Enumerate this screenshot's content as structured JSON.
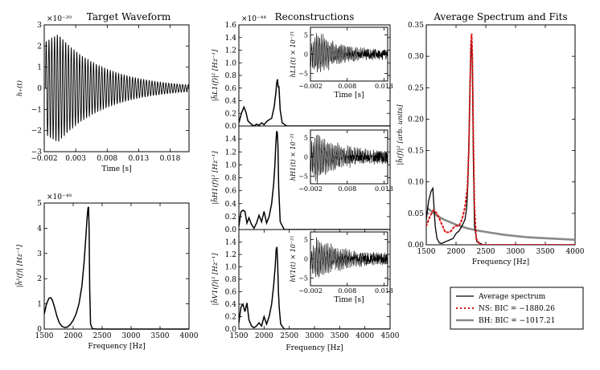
{
  "chart_data": [
    {
      "id": "target_waveform",
      "type": "line",
      "title": "Target Waveform",
      "xlabel": "Time [s]",
      "ylabel": "h₊(t)",
      "exponent": "×10⁻²⁰",
      "xlim": [
        -0.002,
        0.021
      ],
      "ylim": [
        -3,
        3
      ],
      "xticks": [
        -0.002,
        0.003,
        0.008,
        0.013,
        0.018
      ],
      "xtick_labels": [
        "−0.002",
        "0.003",
        "0.008",
        "0.013",
        "0.018"
      ],
      "yticks": [
        -3,
        -2,
        -1,
        0,
        1,
        2,
        3
      ],
      "ytick_labels": [
        "−3",
        "−2",
        "−1",
        "0",
        "1",
        "2",
        "3"
      ],
      "signal": {
        "t_start": -0.0018,
        "t_end": 0.021,
        "t_peak": 0.0002,
        "peak_amplitude": 2.55,
        "initial_amplitude": 2.2,
        "decay_time": 0.0075,
        "frequency_hz": 2260
      }
    },
    {
      "id": "power_spectrum",
      "type": "line",
      "title": "",
      "xlabel": "Frequency [Hz]",
      "ylabel": "|h̃²(f)| [Hz⁻¹]",
      "exponent": "×10⁻⁴⁸",
      "xlim": [
        1500,
        4000
      ],
      "ylim": [
        0,
        5
      ],
      "xticks": [
        1500,
        2000,
        2500,
        3000,
        3500,
        4000
      ],
      "xtick_labels": [
        "1500",
        "2000",
        "2500",
        "3000",
        "3500",
        "4000"
      ],
      "yticks": [
        0,
        1,
        2,
        3,
        4,
        5
      ],
      "ytick_labels": [
        "0",
        "1",
        "2",
        "3",
        "4",
        "5"
      ],
      "x": [
        1500,
        1540,
        1580,
        1610,
        1640,
        1680,
        1720,
        1760,
        1800,
        1850,
        1900,
        1950,
        2000,
        2050,
        2100,
        2150,
        2190,
        2220,
        2240,
        2255,
        2265,
        2275,
        2285,
        2300,
        2330,
        2400,
        2600,
        3000,
        3500,
        4000
      ],
      "values": [
        0.6,
        1.0,
        1.22,
        1.25,
        1.15,
        0.85,
        0.5,
        0.25,
        0.12,
        0.06,
        0.08,
        0.18,
        0.35,
        0.6,
        1.0,
        1.7,
        2.7,
        3.7,
        4.4,
        4.8,
        4.85,
        4.0,
        1.6,
        0.2,
        0.02,
        0.0,
        0.0,
        0.0,
        0.0,
        0.0
      ]
    },
    {
      "id": "reconstruction_L1",
      "type": "line",
      "title": "Reconstructions",
      "xlabel": "",
      "ylabel": "|h̃L1(f)|² [Hz⁻¹]",
      "exponent": "×10⁻⁴⁴",
      "xlim": [
        1500,
        4500
      ],
      "ylim": [
        0,
        1.6
      ],
      "yticks": [
        0.0,
        0.2,
        0.4,
        0.6,
        0.8,
        1.0,
        1.2,
        1.4,
        1.6
      ],
      "ytick_labels": [
        "0.0",
        "0.2",
        "0.4",
        "0.6",
        "0.8",
        "1.0",
        "1.2",
        "1.4",
        "1.6"
      ],
      "x": [
        1500,
        1550,
        1600,
        1640,
        1680,
        1720,
        1760,
        1800,
        1850,
        1900,
        1950,
        2000,
        2050,
        2100,
        2150,
        2200,
        2230,
        2250,
        2265,
        2280,
        2295,
        2320,
        2360,
        2450,
        2600,
        3000,
        3500,
        4000,
        4500
      ],
      "values": [
        0.05,
        0.2,
        0.3,
        0.22,
        0.08,
        0.05,
        0.02,
        0.0,
        0.03,
        0.01,
        0.05,
        0.02,
        0.07,
        0.1,
        0.12,
        0.3,
        0.5,
        0.68,
        0.74,
        0.62,
        0.62,
        0.25,
        0.05,
        0.0,
        0.0,
        0.0,
        0.0,
        0.0,
        0.0
      ],
      "inset": {
        "ylabel": "hL1(t) × 10⁻²¹",
        "xlabel": "Time [s]",
        "xlim": [
          -0.002,
          0.019
        ],
        "ylim": [
          -7,
          7
        ],
        "xticks": [
          -0.002,
          0.008,
          0.018
        ],
        "xtick_labels": [
          "−0.002",
          "0.008",
          "0.018"
        ],
        "yticks": [
          -5,
          0,
          5
        ],
        "ytick_labels": [
          "−5",
          "0",
          "5"
        ],
        "peak_amplitude": 5.5,
        "noise_floor": 1.2,
        "decay_time": 0.006,
        "seed": 11
      }
    },
    {
      "id": "reconstruction_H1",
      "type": "line",
      "title": "",
      "xlabel": "",
      "ylabel": "|h̃H1(f)|² [Hz⁻¹]",
      "exponent": "",
      "xlim": [
        1500,
        4500
      ],
      "ylim": [
        0,
        1.6
      ],
      "yticks": [
        0.0,
        0.2,
        0.4,
        0.6,
        0.8,
        1.0,
        1.2,
        1.4
      ],
      "ytick_labels": [
        "0.0",
        "0.2",
        "0.4",
        "0.6",
        "0.8",
        "1.0",
        "1.2",
        "1.4"
      ],
      "x": [
        1500,
        1540,
        1580,
        1620,
        1660,
        1700,
        1750,
        1800,
        1850,
        1900,
        1950,
        2000,
        2050,
        2100,
        2150,
        2190,
        2215,
        2235,
        2250,
        2262,
        2275,
        2290,
        2320,
        2400,
        2600,
        3000,
        3500,
        4000,
        4500
      ],
      "values": [
        0.05,
        0.27,
        0.3,
        0.28,
        0.1,
        0.18,
        0.08,
        0.02,
        0.1,
        0.22,
        0.12,
        0.28,
        0.1,
        0.2,
        0.4,
        0.7,
        1.0,
        1.35,
        1.52,
        1.5,
        1.3,
        0.65,
        0.12,
        0.0,
        0.0,
        0.0,
        0.0,
        0.0,
        0.0
      ],
      "inset": {
        "ylabel": "hH1(t) × 10⁻²¹",
        "xlabel": "",
        "xlim": [
          -0.002,
          0.019
        ],
        "ylim": [
          -7,
          7
        ],
        "xticks": [
          -0.002,
          0.008,
          0.018
        ],
        "xtick_labels": [
          "−0.002",
          "0.008",
          "0.018"
        ],
        "yticks": [
          -5,
          0,
          5
        ],
        "ytick_labels": [
          "−5",
          "0",
          "5"
        ],
        "peak_amplitude": 6.0,
        "noise_floor": 1.6,
        "decay_time": 0.0065,
        "seed": 23
      }
    },
    {
      "id": "reconstruction_V1",
      "type": "line",
      "title": "",
      "xlabel": "Frequency [Hz]",
      "ylabel": "|h̃V1(f)|² [Hz⁻¹]",
      "exponent": "",
      "xlim": [
        1500,
        4500
      ],
      "ylim": [
        0,
        1.6
      ],
      "xticks": [
        1500,
        2000,
        2500,
        3000,
        3500,
        4000,
        4500
      ],
      "xtick_labels": [
        "1500",
        "2000",
        "2500",
        "3000",
        "3500",
        "4000",
        "4500"
      ],
      "yticks": [
        0.0,
        0.2,
        0.4,
        0.6,
        0.8,
        1.0,
        1.2,
        1.4
      ],
      "ytick_labels": [
        "0.0",
        "0.2",
        "0.4",
        "0.6",
        "0.8",
        "1.0",
        "1.2",
        "1.4"
      ],
      "x": [
        1500,
        1540,
        1580,
        1620,
        1660,
        1700,
        1750,
        1800,
        1850,
        1900,
        1950,
        2000,
        2050,
        2100,
        2150,
        2190,
        2220,
        2240,
        2255,
        2270,
        2285,
        2300,
        2330,
        2400,
        2600,
        3000,
        3500,
        4000,
        4500
      ],
      "values": [
        0.1,
        0.35,
        0.4,
        0.28,
        0.42,
        0.15,
        0.05,
        0.02,
        0.05,
        0.1,
        0.05,
        0.2,
        0.08,
        0.2,
        0.4,
        0.7,
        1.0,
        1.28,
        1.32,
        1.05,
        0.6,
        0.35,
        0.08,
        0.0,
        0.0,
        0.0,
        0.0,
        0.0,
        0.0
      ],
      "inset": {
        "ylabel": "hV1(t) × 10⁻²¹",
        "xlabel": "Time [s]",
        "xlim": [
          -0.002,
          0.019
        ],
        "ylim": [
          -7,
          7
        ],
        "xticks": [
          -0.002,
          0.008,
          0.018
        ],
        "xtick_labels": [
          "−0.002",
          "0.008",
          "0.018"
        ],
        "yticks": [
          -5,
          0,
          5
        ],
        "ytick_labels": [
          "−5",
          "0",
          "5"
        ],
        "peak_amplitude": 5.0,
        "noise_floor": 1.4,
        "decay_time": 0.007,
        "seed": 37
      }
    },
    {
      "id": "average_spectrum",
      "type": "line",
      "title": "Average Spectrum and Fits",
      "xlabel": "Frequency [Hz]",
      "ylabel": "|h̃(f)|² [arb. units]",
      "xlim": [
        1500,
        4000
      ],
      "ylim": [
        0,
        0.35
      ],
      "xticks": [
        1500,
        2000,
        2500,
        3000,
        3500,
        4000
      ],
      "xtick_labels": [
        "1500",
        "2000",
        "2500",
        "3000",
        "3500",
        "4000"
      ],
      "yticks": [
        0.0,
        0.05,
        0.1,
        0.15,
        0.2,
        0.25,
        0.3,
        0.35
      ],
      "ytick_labels": [
        "0.00",
        "0.05",
        "0.10",
        "0.15",
        "0.20",
        "0.25",
        "0.30",
        "0.35"
      ],
      "series": [
        {
          "name": "Average spectrum",
          "color": "#000000",
          "dash": "solid",
          "x": [
            1500,
            1540,
            1580,
            1610,
            1630,
            1650,
            1680,
            1720,
            1760,
            1800,
            1850,
            1900,
            1950,
            2000,
            2050,
            2100,
            2150,
            2180,
            2200,
            2220,
            2235,
            2250,
            2262,
            2275,
            2290,
            2310,
            2350,
            2450,
            2600,
            3000,
            3500,
            4000
          ],
          "values": [
            0.04,
            0.07,
            0.085,
            0.09,
            0.06,
            0.03,
            0.01,
            0.003,
            0.002,
            0.004,
            0.006,
            0.008,
            0.01,
            0.018,
            0.022,
            0.03,
            0.04,
            0.06,
            0.1,
            0.18,
            0.26,
            0.31,
            0.325,
            0.28,
            0.14,
            0.03,
            0.005,
            0.0,
            0.0,
            0.0,
            0.0,
            0.0
          ]
        },
        {
          "name": "NS: BIC = −1880.26",
          "color": "#dd1111",
          "dash": "dotted",
          "x": [
            1500,
            1560,
            1620,
            1680,
            1750,
            1820,
            1900,
            1980,
            2050,
            2100,
            2150,
            2190,
            2215,
            2235,
            2250,
            2262,
            2275,
            2290,
            2310,
            2340,
            2400,
            2500,
            3000,
            3500,
            4000
          ],
          "values": [
            0.03,
            0.045,
            0.055,
            0.05,
            0.035,
            0.02,
            0.02,
            0.03,
            0.03,
            0.04,
            0.06,
            0.09,
            0.15,
            0.25,
            0.32,
            0.336,
            0.3,
            0.18,
            0.06,
            0.01,
            0.0,
            0.0,
            0.0,
            0.0,
            0.0
          ]
        },
        {
          "name": "BH: BIC = −1017.21",
          "color": "#888888",
          "dash": "solid",
          "x": [
            1500,
            1600,
            1700,
            1800,
            1900,
            2000,
            2200,
            2400,
            2600,
            2800,
            3000,
            3200,
            3400,
            3600,
            3800,
            4000
          ],
          "values": [
            0.06,
            0.052,
            0.045,
            0.04,
            0.036,
            0.032,
            0.026,
            0.022,
            0.019,
            0.016,
            0.014,
            0.012,
            0.011,
            0.01,
            0.009,
            0.008
          ]
        }
      ]
    }
  ]
}
